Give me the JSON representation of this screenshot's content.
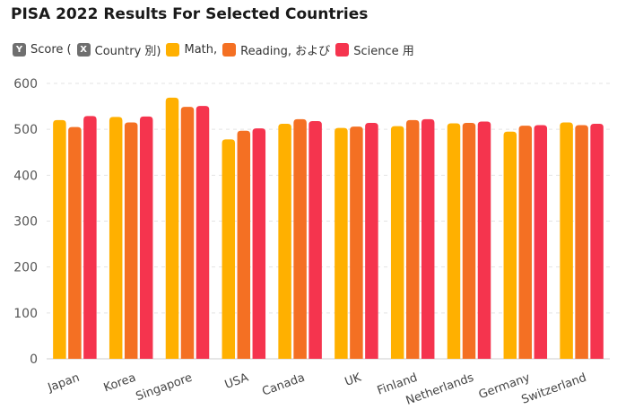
{
  "chart_title": "PISA 2022 Results For Selected Countries",
  "legend": {
    "items": [
      {
        "label": "Score (",
        "marker": "Y"
      },
      {
        "label": "Country 別)",
        "marker": "X"
      },
      {
        "label": "Math,",
        "color": "#FFB000"
      },
      {
        "label": "Reading, および",
        "color": "#F47023"
      },
      {
        "label": "Science 用",
        "color": "#F5344E"
      }
    ]
  },
  "chart_data": {
    "type": "bar",
    "title": "PISA 2022 Results For Selected Countries",
    "categories": [
      "Japan",
      "Korea",
      "Singapore",
      "USA",
      "Canada",
      "UK",
      "Finland",
      "Netherlands",
      "Germany",
      "Switzerland"
    ],
    "series": [
      {
        "name": "Math,",
        "color": "#FFB000",
        "values": [
          520,
          527,
          569,
          478,
          512,
          503,
          507,
          513,
          495,
          515
        ]
      },
      {
        "name": "Reading, および",
        "color": "#F47023",
        "values": [
          505,
          515,
          549,
          497,
          522,
          506,
          520,
          514,
          508,
          509
        ]
      },
      {
        "name": "Science 用",
        "color": "#F5344E",
        "values": [
          529,
          528,
          551,
          502,
          518,
          514,
          522,
          517,
          509,
          512
        ]
      }
    ],
    "ylim": [
      0,
      600
    ],
    "yticks": [
      0,
      100,
      200,
      300,
      400,
      500,
      600
    ],
    "grid": true,
    "legend_position": "top-left"
  }
}
